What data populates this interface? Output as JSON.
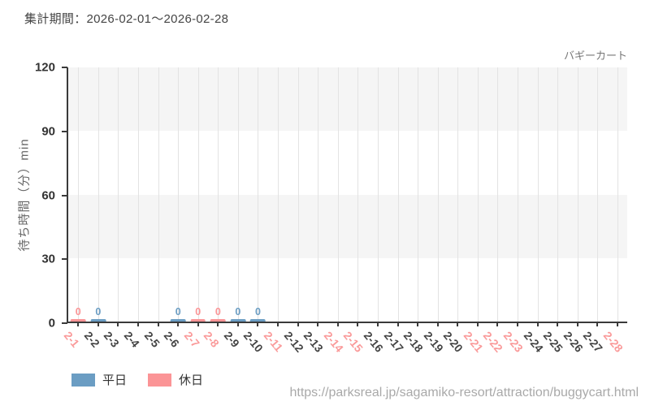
{
  "header": {
    "title": "集計期間：2026-02-01～2026-02-28",
    "trace_label": "バギーカート"
  },
  "footer": {
    "url": "https://parksreal.jp/sagamiko-resort/attraction/buggycart.html"
  },
  "colors": {
    "weekday": "#6b9dc3",
    "holiday": "#fb9496",
    "holiday_tick_label": "#fa9a9a",
    "weekday_tick_label": "#444444",
    "grid_band": "#f5f5f5",
    "gridline": "#e3e3e3",
    "axis": "#3a3a3a",
    "url_text": "#a9a9a9"
  },
  "legend": {
    "items": [
      {
        "key": "weekday",
        "label": "平日",
        "color": "#6b9dc3"
      },
      {
        "key": "holiday",
        "label": "休日",
        "color": "#fb9496"
      }
    ]
  },
  "chart_data": {
    "type": "bar",
    "title": "集計期間：2026-02-01～2026-02-28",
    "trace_label": "バギーカート",
    "xlabel": "",
    "ylabel": "待ち時間（分）min",
    "ylim": [
      0,
      120
    ],
    "yticks": [
      0,
      30,
      60,
      90,
      120
    ],
    "grid_bands": [
      [
        90,
        120
      ],
      [
        30,
        60
      ]
    ],
    "grid": "on",
    "legend_position": "bottom-left",
    "categories": [
      "2-1",
      "2-2",
      "2-3",
      "2-4",
      "2-5",
      "2-6",
      "2-7",
      "2-8",
      "2-9",
      "2-10",
      "2-11",
      "2-12",
      "2-13",
      "2-14",
      "2-15",
      "2-16",
      "2-17",
      "2-18",
      "2-19",
      "2-20",
      "2-21",
      "2-22",
      "2-23",
      "2-24",
      "2-25",
      "2-26",
      "2-27",
      "2-28"
    ],
    "holiday_categories": [
      "2-1",
      "2-7",
      "2-8",
      "2-11",
      "2-14",
      "2-15",
      "2-21",
      "2-22",
      "2-23",
      "2-28"
    ],
    "series": [
      {
        "name": "平日",
        "color": "#6b9dc3",
        "values": [
          null,
          0,
          null,
          null,
          null,
          0,
          null,
          null,
          0,
          0,
          null,
          null,
          null,
          null,
          null,
          null,
          null,
          null,
          null,
          null,
          null,
          null,
          null,
          null,
          null,
          null,
          null,
          null
        ]
      },
      {
        "name": "休日",
        "color": "#fb9496",
        "values": [
          0,
          null,
          null,
          null,
          null,
          null,
          0,
          0,
          null,
          null,
          null,
          null,
          null,
          null,
          null,
          null,
          null,
          null,
          null,
          null,
          null,
          null,
          null,
          null,
          null,
          null,
          null,
          null
        ]
      }
    ],
    "bar_value_labels": "shown above bars"
  }
}
